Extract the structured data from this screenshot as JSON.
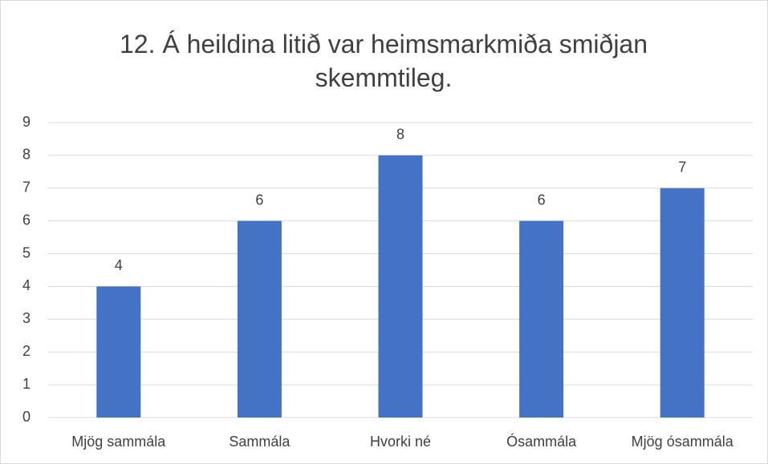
{
  "chart_data": {
    "type": "bar",
    "title": "12. Á heildina litið var heimsmarkmiða smiðjan skemmtileg.",
    "categories": [
      "Mjög sammála",
      "Sammála",
      "Hvorki né",
      "Ósammála",
      "Mjög ósammála"
    ],
    "values": [
      4,
      6,
      8,
      6,
      7
    ],
    "color": "#4472c4",
    "ylim": [
      0,
      9
    ],
    "yticks": [
      0,
      1,
      2,
      3,
      4,
      5,
      6,
      7,
      8,
      9
    ],
    "grid": true
  }
}
